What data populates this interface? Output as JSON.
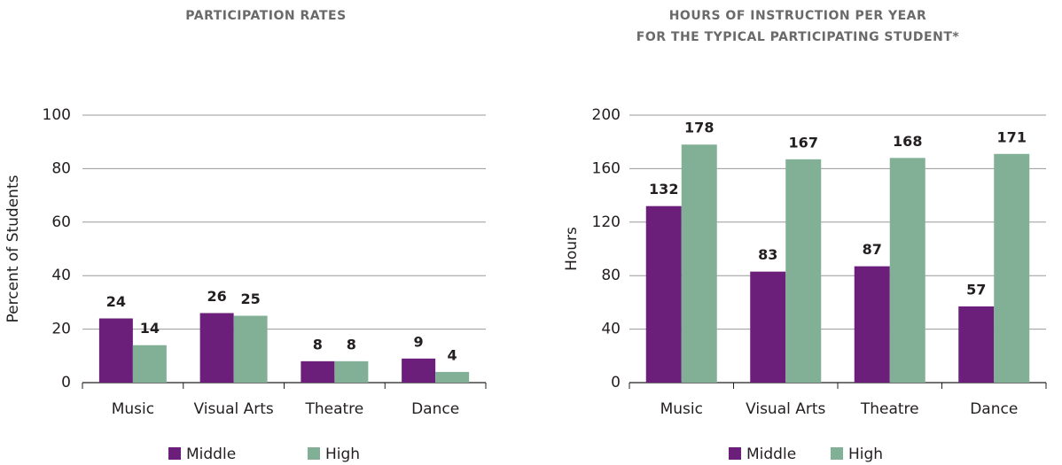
{
  "chart_data": [
    {
      "type": "bar",
      "title": [
        "PARTICIPATION RATES"
      ],
      "y_label": "Percent of Students",
      "categories": [
        "Music",
        "Visual Arts",
        "Theatre",
        "Dance"
      ],
      "series": [
        {
          "name": "Middle",
          "color": "#6b1f7b",
          "values": [
            24,
            26,
            8,
            9
          ]
        },
        {
          "name": "High",
          "color": "#82b096",
          "values": [
            14,
            25,
            8,
            4
          ]
        }
      ],
      "ylim": [
        0,
        100
      ],
      "yticks": [
        0,
        20,
        40,
        60,
        80,
        100
      ],
      "grid": true
    },
    {
      "type": "bar",
      "title": [
        "HOURS OF INSTRUCTION PER YEAR",
        "FOR THE TYPICAL PARTICIPATING STUDENT*"
      ],
      "y_label": "Hours",
      "categories": [
        "Music",
        "Visual Arts",
        "Theatre",
        "Dance"
      ],
      "series": [
        {
          "name": "Middle",
          "color": "#6b1f7b",
          "values": [
            132,
            83,
            87,
            57
          ]
        },
        {
          "name": "High",
          "color": "#82b096",
          "values": [
            178,
            167,
            168,
            171
          ]
        }
      ],
      "ylim": [
        0,
        200
      ],
      "yticks": [
        0,
        40,
        80,
        120,
        160,
        200
      ],
      "grid": true
    }
  ]
}
